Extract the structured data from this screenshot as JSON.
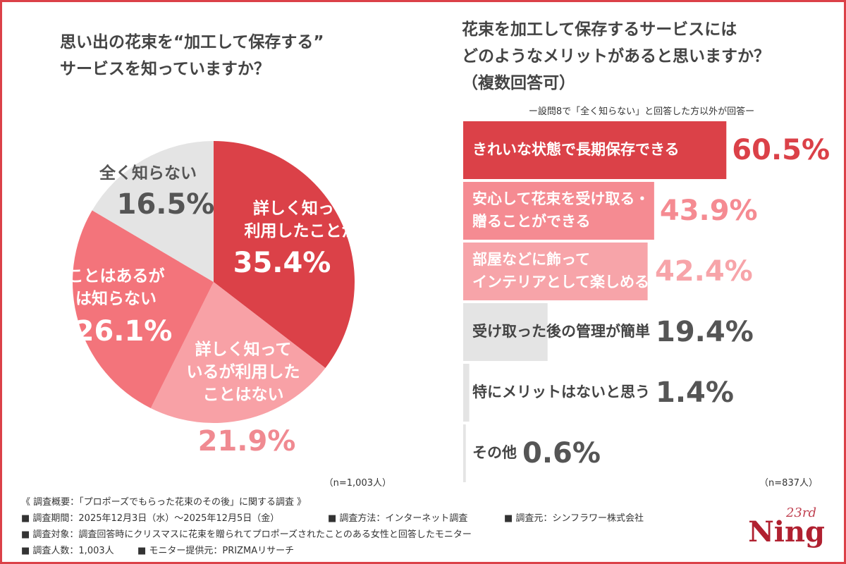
{
  "chart_data": [
    {
      "type": "pie",
      "title": "思い出の花束を“加工して保存する”\nサービスを知っていますか？",
      "categories": [
        "詳しく知っていて\n利用したことがある",
        "詳しく知って\nいるが利用した\nことはない",
        "聞いたことはあるが\n詳しくは知らない",
        "全く知らない"
      ],
      "values": [
        35.4,
        21.9,
        26.1,
        16.5
      ],
      "value_labels": [
        "35.4%",
        "21.9%",
        "26.1%",
        "16.5%"
      ],
      "colors": [
        "#db4148",
        "#f8a1a6",
        "#f3747b",
        "#e4e4e4"
      ],
      "annotation": "（n=1,003人）"
    },
    {
      "type": "hbar",
      "title": "花束を加工して保存するサービスには\nどのようなメリットがあると思いますか？\n（複数回答可）",
      "subtitle": "ー設問8で「全く知らない」と回答した方以外が回答ー",
      "categories": [
        "きれいな状態で長期保存できる",
        "安心して花束を受け取る・\n贈ることができる",
        "部屋などに飾って\nインテリアとして楽しめる",
        "受け取った後の管理が簡単",
        "特にメリットはないと思う",
        "その他"
      ],
      "values": [
        60.5,
        43.9,
        42.4,
        19.4,
        1.4,
        0.6
      ],
      "value_labels": [
        "60.5%",
        "43.9%",
        "42.4%",
        "19.4%",
        "1.4%",
        "0.6%"
      ],
      "colors": [
        "#db4148",
        "#f58b92",
        "#f7a4a9",
        "#e4e4e4",
        "#e4e4e4",
        "#e4e4e4"
      ],
      "xlim": [
        0,
        100
      ],
      "annotation": "（n=837人）"
    }
  ],
  "footer": {
    "heading": "《 調査概要：「プロポーズでもらった花束のその後」に関する調査 》",
    "items": [
      "■ 調査期間：2025年12月3日（水）～2025年12月5日（金）",
      "■ 調査方法：インターネット調査",
      "■ 調査元：シンフラワー株式会社",
      "■ 調査対象：調査回答時にクリスマスに花束を贈られてプロポーズされたことのある女性と回答したモニター",
      "■ 調査人数：1,003人",
      "■ モニター提供元：PRIZMAリサーチ"
    ],
    "logo_small": "23rd",
    "logo": "Ning"
  }
}
